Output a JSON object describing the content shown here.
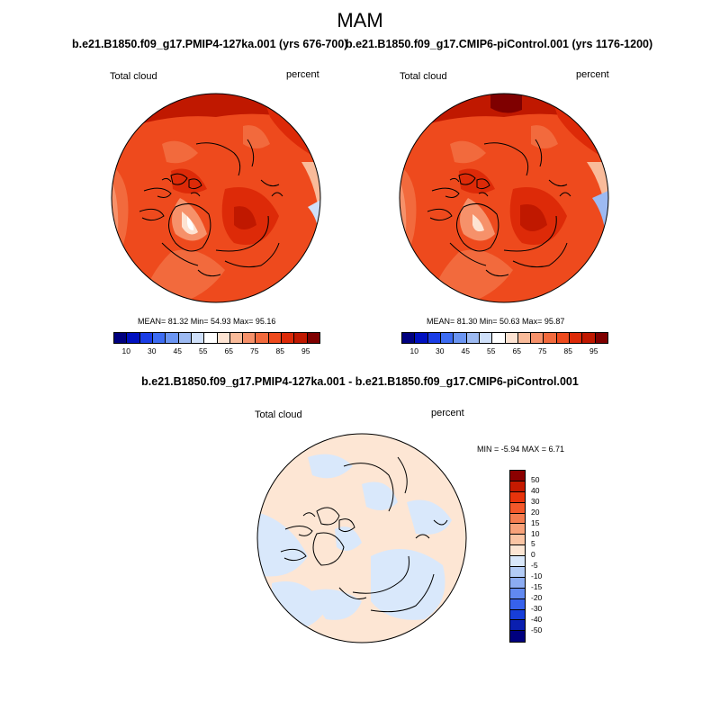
{
  "title": "MAM",
  "panels": [
    {
      "title": "b.e21.B1850.f09_g17.PMIP4-127ka.001 (yrs 676-700)",
      "left_label": "Total cloud",
      "right_label": "percent",
      "stats": "MEAN=  81.32  Min=  54.93  Max=  95.16"
    },
    {
      "title": "b.e21.B1850.f09_g17.CMIP6-piControl.001 (yrs 1176-1200)",
      "left_label": "Total cloud",
      "right_label": "percent",
      "stats": "MEAN=  81.30  Min=  50.63  Max=  95.87"
    }
  ],
  "colorbar_top": {
    "labels": [
      "10",
      "30",
      "45",
      "55",
      "65",
      "75",
      "85",
      "95"
    ],
    "colors": [
      "#00007f",
      "#0010c0",
      "#1a3de6",
      "#3d6cf2",
      "#6b95f2",
      "#9dbaf2",
      "#cfe0fa",
      "#ffffff",
      "#fde3d2",
      "#f9bb9a",
      "#f6916a",
      "#f26a3d",
      "#ee4a1d",
      "#dd2a08",
      "#c01800",
      "#7f0000"
    ]
  },
  "diff": {
    "title": "b.e21.B1850.f09_g17.PMIP4-127ka.001 - b.e21.B1850.f09_g17.CMIP6-piControl.001",
    "left_label": "Total cloud",
    "right_label": "percent",
    "minmax": "MIN =  -5.94 MAX =   6.71",
    "colorbar": {
      "labels": [
        "50",
        "40",
        "30",
        "20",
        "15",
        "10",
        "5",
        "0",
        "-5",
        "-10",
        "-15",
        "-20",
        "-30",
        "-40",
        "-50"
      ],
      "colors": [
        "#8b0000",
        "#c51a00",
        "#e8340c",
        "#f4582a",
        "#f57d50",
        "#f8a27a",
        "#fbc5a4",
        "#fde6d4",
        "#d9e8fb",
        "#b3ccf6",
        "#8cacf2",
        "#6189f0",
        "#3762ec",
        "#173ed9",
        "#0a1fb0",
        "#00007f"
      ]
    }
  }
}
